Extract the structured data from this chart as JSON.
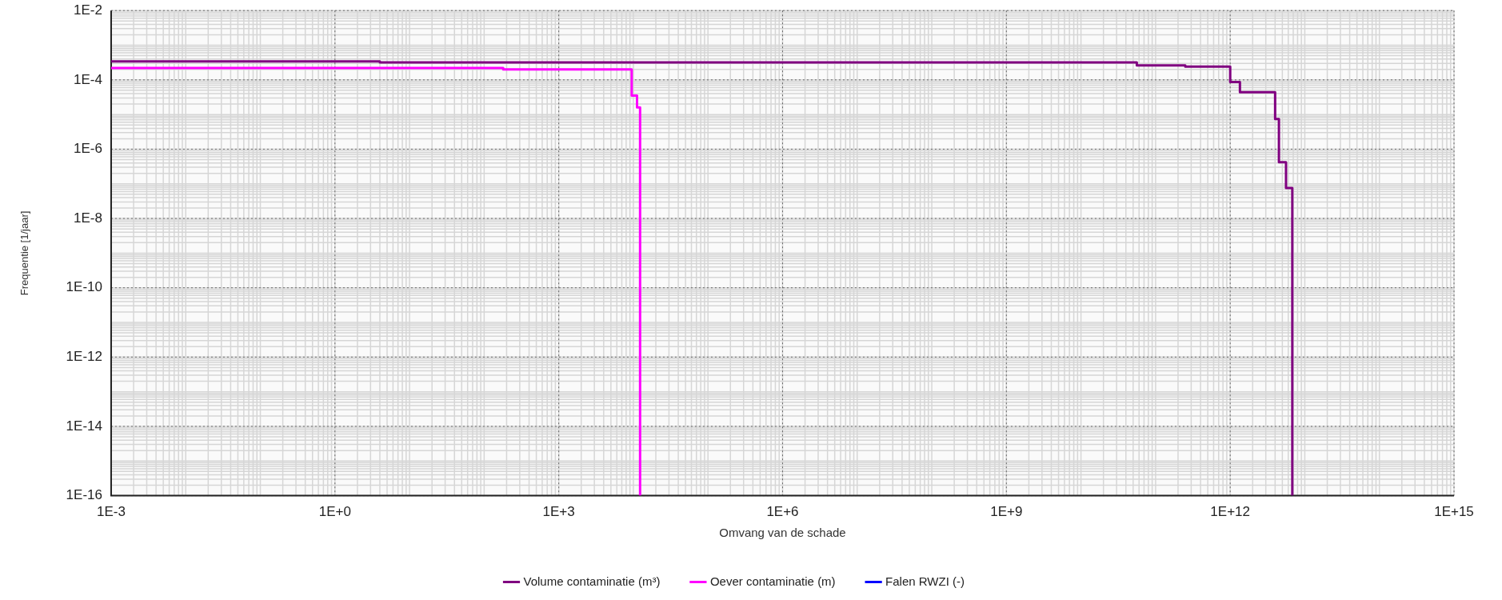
{
  "chart_data": {
    "type": "step",
    "xlabel": "Omvang van de schade",
    "ylabel": "Frequentie [1/jaar]",
    "log": "xy",
    "grid": true,
    "legend": "bottom",
    "marker": "none",
    "line_style": "solid",
    "xlim": [
      0.001,
      1000000000000000.0
    ],
    "xticks": [
      {
        "value": 0.001,
        "label": "1E-3"
      },
      {
        "value": 1,
        "label": "1E+0"
      },
      {
        "value": 1000,
        "label": "1E+3"
      },
      {
        "value": 1000000.0,
        "label": "1E+6"
      },
      {
        "value": 1000000000.0,
        "label": "1E+9"
      },
      {
        "value": 1000000000000.0,
        "label": "1E+12"
      },
      {
        "value": 1000000000000000.0,
        "label": "1E+15"
      }
    ],
    "ylim": [
      1e-16,
      0.01
    ],
    "yticks": [
      {
        "value": 1e-16,
        "label": "1E-16"
      },
      {
        "value": 1e-14,
        "label": "1E-14"
      },
      {
        "value": 1e-12,
        "label": "1E-12"
      },
      {
        "value": 1e-10,
        "label": "1E-10"
      },
      {
        "value": 1e-08,
        "label": "1E-8"
      },
      {
        "value": 1e-06,
        "label": "1E-6"
      },
      {
        "value": 0.0001,
        "label": "1E-4"
      },
      {
        "value": 0.01,
        "label": "1E-2"
      }
    ],
    "series": [
      {
        "name": "Volume contaminatie (m³)",
        "color": "#800080",
        "x": [
          0.001,
          4,
          56000000000.0,
          250000000000.0,
          1000000000000.0,
          1350000000000.0,
          4000000000000.0,
          4500000000000.0,
          5600000000000.0,
          6800000000000.0
        ],
        "values": [
          0.00034,
          0.00032,
          0.00026,
          0.00024,
          8.7e-05,
          4.4e-05,
          7.4e-06,
          4.2e-07,
          7.6e-08,
          1e-16
        ]
      },
      {
        "name": "Oever contaminatie (m)",
        "color": "#ff00ff",
        "x": [
          0.001,
          180,
          9500,
          11200,
          12300
        ],
        "values": [
          0.00022,
          0.0002,
          3.5e-05,
          1.6e-05,
          1e-16
        ]
      },
      {
        "name": "Falen RWZI (-)",
        "color": "#0000ff"
      }
    ]
  }
}
